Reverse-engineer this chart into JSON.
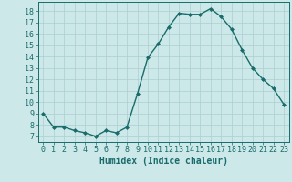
{
  "x": [
    0,
    1,
    2,
    3,
    4,
    5,
    6,
    7,
    8,
    9,
    10,
    11,
    12,
    13,
    14,
    15,
    16,
    17,
    18,
    19,
    20,
    21,
    22,
    23
  ],
  "y": [
    9,
    7.8,
    7.8,
    7.5,
    7.3,
    7.0,
    7.5,
    7.3,
    7.8,
    10.7,
    13.9,
    15.1,
    16.6,
    17.8,
    17.7,
    17.7,
    18.2,
    17.5,
    16.4,
    14.6,
    13.0,
    12.0,
    11.2,
    9.8
  ],
  "line_color": "#1a6b6b",
  "marker": "D",
  "marker_size": 2.0,
  "linewidth": 1.0,
  "xlabel": "Humidex (Indice chaleur)",
  "xlim": [
    -0.5,
    23.5
  ],
  "ylim": [
    6.5,
    18.8
  ],
  "yticks": [
    7,
    8,
    9,
    10,
    11,
    12,
    13,
    14,
    15,
    16,
    17,
    18
  ],
  "xticks": [
    0,
    1,
    2,
    3,
    4,
    5,
    6,
    7,
    8,
    9,
    10,
    11,
    12,
    13,
    14,
    15,
    16,
    17,
    18,
    19,
    20,
    21,
    22,
    23
  ],
  "bg_color": "#cce8e8",
  "grid_color": "#aacfcf",
  "tick_color": "#1a6b6b",
  "label_color": "#1a6b6b",
  "xlabel_fontsize": 7,
  "tick_fontsize": 6
}
